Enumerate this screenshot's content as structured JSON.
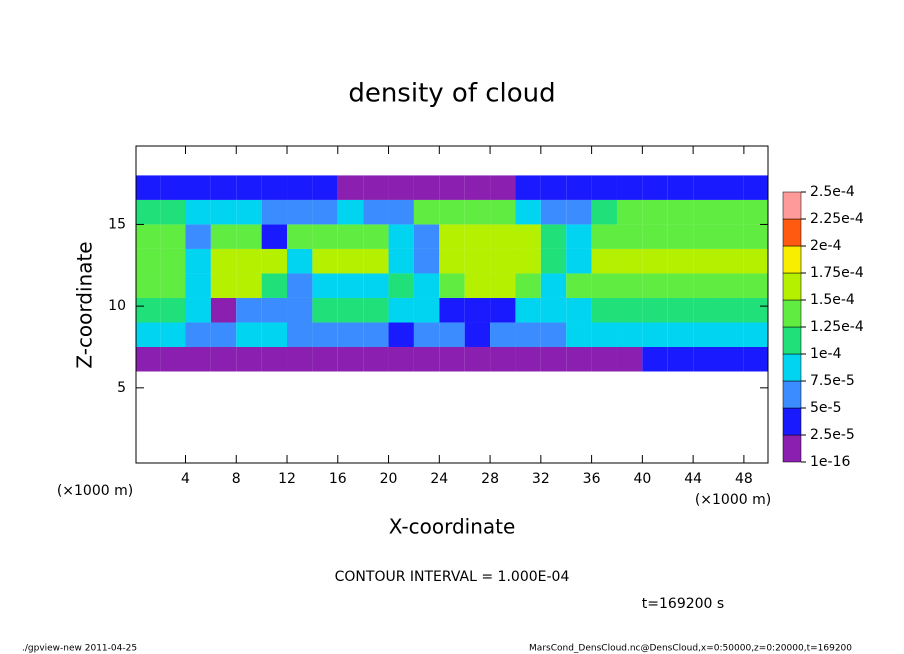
{
  "chart_data": {
    "type": "heatmap",
    "title": "density of cloud",
    "xlabel": "X-coordinate",
    "ylabel": "Z-coordinate",
    "xunits": "(×1000 m)",
    "yunits": "(×1000 m)",
    "annotations": [
      "CONTOUR INTERVAL = 1.000E-04",
      "t=169200 s"
    ],
    "footer_left": "./gpview-new  2011-04-25",
    "footer_right": "MarsCond_DensCloud.nc@DensCloud,x=0:50000,z=0:20000,t=169200",
    "xlim": [
      0.1,
      49.9
    ],
    "ylim": [
      0.4,
      19.8
    ],
    "xticks": [
      4,
      8,
      12,
      16,
      20,
      24,
      28,
      32,
      36,
      40,
      44,
      48
    ],
    "yticks": [
      5,
      10,
      15
    ],
    "x": [
      1,
      3,
      5,
      7,
      9,
      11,
      13,
      15,
      17,
      19,
      21,
      23,
      25,
      27,
      29,
      31,
      33,
      35,
      37,
      39,
      41,
      43,
      45,
      47,
      49
    ],
    "y": [
      6.75,
      8.25,
      9.75,
      11.25,
      12.75,
      14.25,
      15.75,
      17.25
    ],
    "values": [
      [
        2e-05,
        2e-05,
        2e-05,
        1.5e-05,
        2e-05,
        2e-05,
        1.5e-05,
        1.5e-05,
        1.5e-05,
        1e-05,
        1e-05,
        1e-05,
        1e-05,
        1e-05,
        1.5e-05,
        1.5e-05,
        2e-05,
        2e-05,
        2e-05,
        2e-05,
        2.5e-05,
        2.5e-05,
        2.5e-05,
        2.5e-05,
        2.5e-05
      ],
      [
        8e-05,
        8e-05,
        7e-05,
        6e-05,
        8e-05,
        8e-05,
        7e-05,
        5e-05,
        5e-05,
        5e-05,
        4e-05,
        5e-05,
        5e-05,
        4e-05,
        5e-05,
        5e-05,
        7e-05,
        9e-05,
        9e-05,
        9e-05,
        9e-05,
        9e-05,
        9e-05,
        9e-05,
        9e-05
      ],
      [
        0.00011,
        0.00011,
        9e-05,
        2e-05,
        7e-05,
        7e-05,
        7e-05,
        0.00011,
        0.00011,
        0.00011,
        8e-05,
        8e-05,
        4e-05,
        4e-05,
        4e-05,
        8e-05,
        8e-05,
        8e-05,
        0.00012,
        0.00012,
        0.00012,
        0.00012,
        0.00012,
        0.00012,
        0.00012
      ],
      [
        0.00013,
        0.00013,
        8e-05,
        0.00016,
        0.00016,
        0.00012,
        5e-05,
        8e-05,
        9e-05,
        9e-05,
        0.00011,
        8e-05,
        0.00014,
        0.00015,
        0.00015,
        0.00014,
        9e-05,
        0.00013,
        0.00014,
        0.00014,
        0.00014,
        0.00014,
        0.00014,
        0.00014,
        0.00014
      ],
      [
        0.00014,
        0.00014,
        8e-05,
        0.00017,
        0.00017,
        0.00015,
        8e-05,
        0.00015,
        0.00016,
        0.00015,
        8e-05,
        6e-05,
        0.00016,
        0.00016,
        0.00016,
        0.00016,
        0.00011,
        8e-05,
        0.00015,
        0.00015,
        0.00016,
        0.00016,
        0.00016,
        0.00016,
        0.00015
      ],
      [
        0.00013,
        0.00013,
        7e-05,
        0.00014,
        0.00014,
        4e-05,
        0.00013,
        0.00013,
        0.00013,
        0.00013,
        8e-05,
        5e-05,
        0.00015,
        0.00015,
        0.00015,
        0.00015,
        0.00012,
        8e-05,
        0.00014,
        0.00014,
        0.00014,
        0.00014,
        0.00014,
        0.00014,
        0.00014
      ],
      [
        0.00012,
        0.00012,
        8e-05,
        8e-05,
        8e-05,
        5e-05,
        5e-05,
        5e-05,
        8e-05,
        5e-05,
        5e-05,
        0.00013,
        0.00013,
        0.00013,
        0.00013,
        8e-05,
        5e-05,
        5e-05,
        0.00011,
        0.00013,
        0.00013,
        0.00013,
        0.00013,
        0.00013,
        0.00013
      ],
      [
        4e-05,
        4e-05,
        4e-05,
        3e-05,
        4e-05,
        4e-05,
        4e-05,
        3e-05,
        2e-05,
        2e-05,
        2e-05,
        1.5e-05,
        1.5e-05,
        2e-05,
        2e-05,
        3e-05,
        3e-05,
        4e-05,
        4e-05,
        4e-05,
        4e-05,
        4e-05,
        4e-05,
        4e-05,
        4e-05
      ]
    ],
    "levels": [
      {
        "value": 1e-16,
        "label": "1e-16"
      },
      {
        "value": 2.5e-05,
        "label": "2.5e-5"
      },
      {
        "value": 5e-05,
        "label": "5e-5"
      },
      {
        "value": 7.5e-05,
        "label": "7.5e-5"
      },
      {
        "value": 0.0001,
        "label": "1e-4"
      },
      {
        "value": 0.000125,
        "label": "1.25e-4"
      },
      {
        "value": 0.00015,
        "label": "1.5e-4"
      },
      {
        "value": 0.000175,
        "label": "1.75e-4"
      },
      {
        "value": 0.0002,
        "label": "2e-4"
      },
      {
        "value": 0.000225,
        "label": "2.25e-4"
      },
      {
        "value": 0.00025,
        "label": "2.5e-4"
      }
    ],
    "colors": [
      "#8a1fb0",
      "#1a1aff",
      "#3a8cff",
      "#00d4f0",
      "#20e07a",
      "#60ec40",
      "#b4f000",
      "#f8ee00",
      "#ff5a10",
      "#ff9a9a"
    ]
  }
}
